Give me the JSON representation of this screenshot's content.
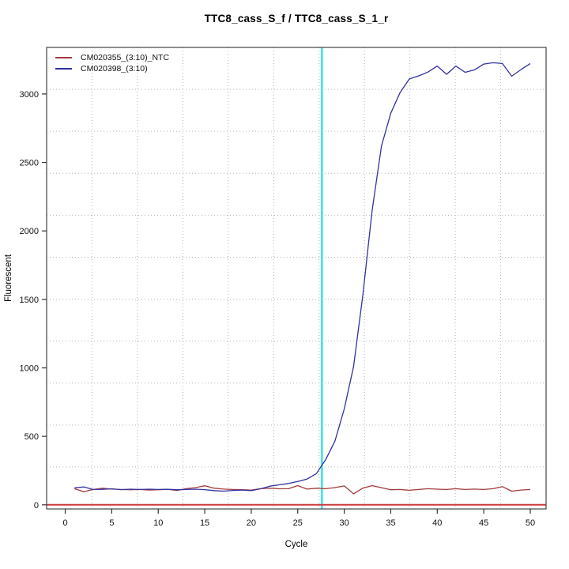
{
  "title": "TTC8_cass_S_f / TTC8_cass_S_1_r",
  "chart_data": {
    "type": "line",
    "title": "TTC8_cass_S_f / TTC8_cass_S_1_r",
    "xlabel": "Cycle",
    "ylabel": "Fluorescent",
    "x_ticks": [
      0,
      5,
      10,
      15,
      20,
      25,
      30,
      35,
      40,
      45,
      50
    ],
    "y_ticks": [
      0,
      500,
      1000,
      1500,
      2000,
      2500,
      3000
    ],
    "xlim": [
      -2.0,
      51.7
    ],
    "ylim": [
      -30,
      3340
    ],
    "grid": {
      "divisions_x": 11,
      "divisions_y": 11,
      "color": "#b3b3b3",
      "style": "dotted"
    },
    "legend_position": "top-left",
    "x": [
      1,
      2,
      3,
      4,
      5,
      6,
      7,
      8,
      9,
      10,
      11,
      12,
      13,
      14,
      15,
      16,
      17,
      18,
      19,
      20,
      21,
      22,
      23,
      24,
      25,
      26,
      27,
      28,
      29,
      30,
      31,
      32,
      33,
      34,
      35,
      36,
      37,
      38,
      39,
      40,
      41,
      42,
      43,
      44,
      45,
      46,
      47,
      48,
      49,
      50
    ],
    "series": [
      {
        "name": "CM020355_(3:10)_NTC",
        "color": "#a33a3a",
        "values": [
          118,
          95,
          112,
          121,
          115,
          112,
          110,
          112,
          108,
          110,
          113,
          105,
          118,
          126,
          139,
          122,
          115,
          112,
          110,
          108,
          118,
          122,
          117,
          118,
          140,
          115,
          121,
          118,
          126,
          138,
          80,
          122,
          140,
          125,
          110,
          112,
          106,
          112,
          118,
          114,
          112,
          118,
          112,
          115,
          112,
          118,
          133,
          100,
          108,
          112
        ]
      },
      {
        "name": "CM020398_(3:10)",
        "color": "#3232a0",
        "values": [
          124,
          131,
          112,
          113,
          117,
          111,
          114,
          112,
          114,
          112,
          113,
          110,
          112,
          114,
          111,
          104,
          100,
          105,
          108,
          104,
          117,
          136,
          146,
          156,
          170,
          188,
          228,
          330,
          465,
          700,
          1010,
          1530,
          2150,
          2620,
          2860,
          3010,
          3110,
          3132,
          3160,
          3204,
          3144,
          3204,
          3158,
          3176,
          3218,
          3228,
          3222,
          3130,
          3178,
          3222
        ]
      }
    ],
    "threshold_line": {
      "y": 0,
      "color": "#cc3a3a"
    },
    "ct_line": {
      "x": 27.6,
      "color": "#00dfe6"
    }
  }
}
